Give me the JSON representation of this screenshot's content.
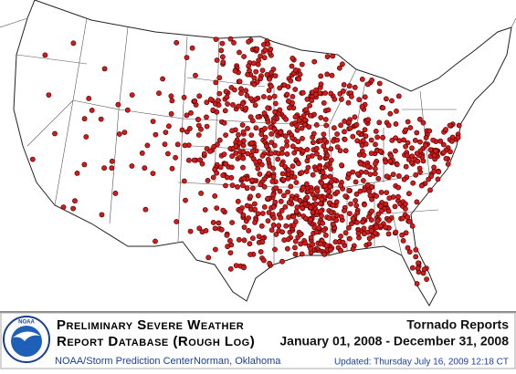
{
  "footer": {
    "logo": "NOAA",
    "title_line1": "Preliminary Severe Weather",
    "title_line2": "Report Database (Rough Log)",
    "agency": "NOAA/Storm Prediction Center",
    "location": "Norman, Oklahoma",
    "report_type": "Tornado Reports",
    "date_range": "January 01, 2008 - December 31, 2008",
    "updated": "Updated: Thursday July 16, 2009 12:18 CT"
  }
}
